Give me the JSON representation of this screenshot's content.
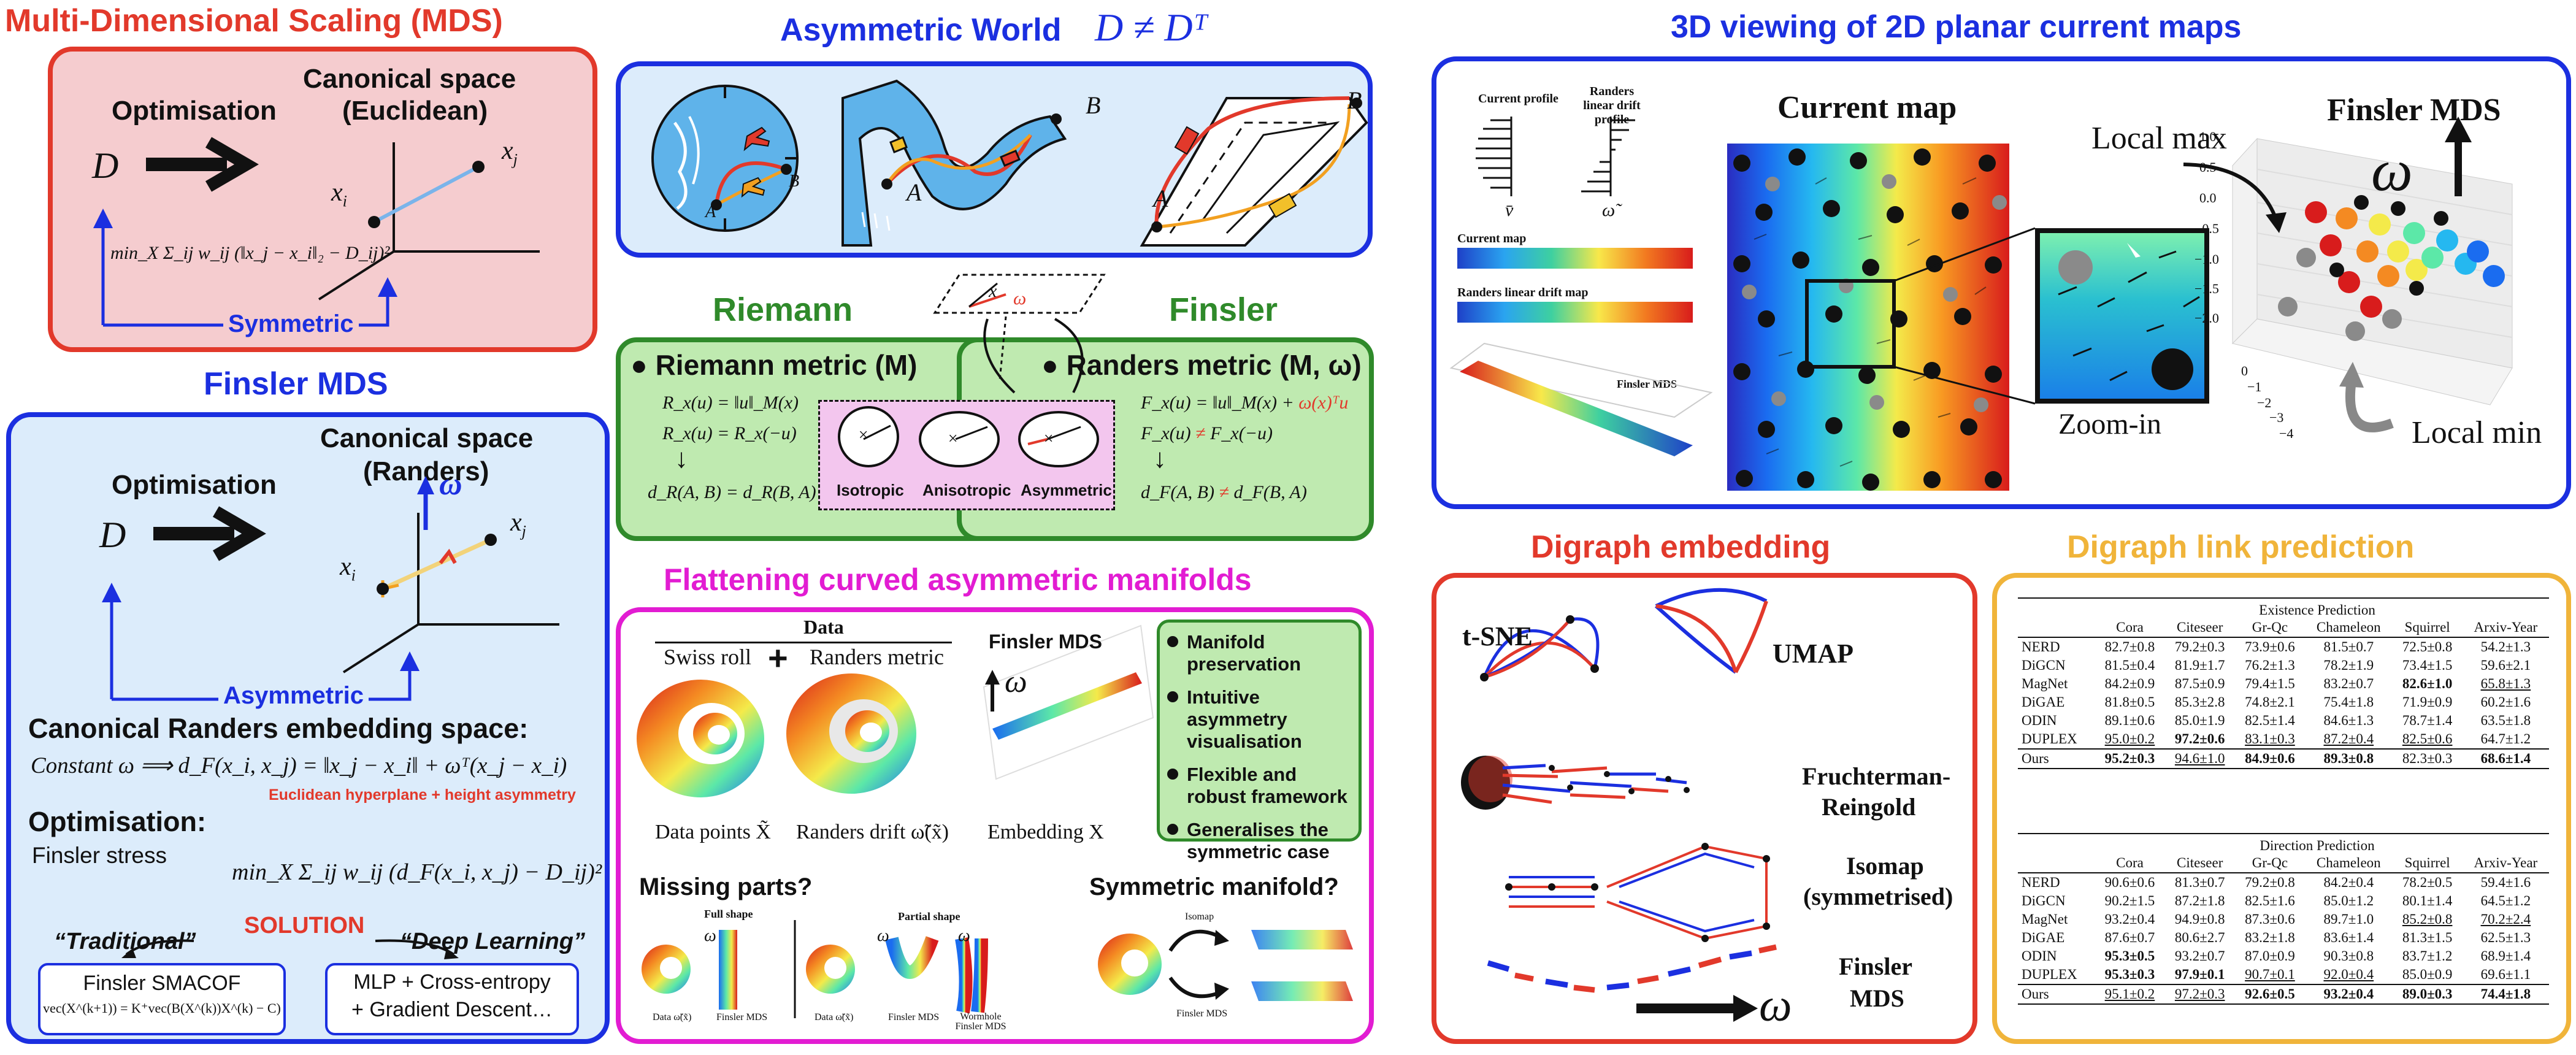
{
  "mds": {
    "title": "Multi-Dimensional Scaling (MDS)",
    "optimisation": "Optimisation",
    "canonical": "Canonical space",
    "canonical_sub": "(Euclidean)",
    "D": "D",
    "xi": "x",
    "xj": "x",
    "objective": "min_X Σ_ij w_ij (‖x_j − x_i‖₂ − D_ij)²",
    "symmetric": "Symmetric"
  },
  "fmds": {
    "title": "Finsler MDS",
    "optimisation": "Optimisation",
    "canonical": "Canonical space",
    "canonical_sub": "(Randers)",
    "D": "D",
    "omega": "ω",
    "asymmetric": "Asymmetric",
    "embed_title": "Canonical Randers embedding space:",
    "constant": "Constant ω ⟹ d_F(x_i, x_j) = ‖x_j − x_i‖ + ωᵀ(x_j − x_i)",
    "hyperplane": "Euclidean hyperplane + height asymmetry",
    "opt_title": "Optimisation:",
    "stress_label": "Finsler stress",
    "stress": "min_X Σ_ij w_ij (d_F(x_i, x_j) − D_ij)²",
    "solution": "SOLUTION",
    "traditional": "“Traditional”",
    "deep": "“Deep Learning”",
    "smacof": "Finsler SMACOF",
    "smacof_eq": "vec(X^(k+1)) = K⁺vec(B(X^(k))X^(k) − C)",
    "mlp1": "MLP + Cross-entropy",
    "mlp2": "+ Gradient Descent…"
  },
  "asym": {
    "title": "Asymmetric World",
    "formula": "D ≠ Dᵀ",
    "A": "A",
    "B": "B"
  },
  "rf": {
    "riemann": "Riemann",
    "finsler": "Finsler",
    "riemann_metric": "Riemann metric (M)",
    "randers_metric": "Randers metric (M, ω)",
    "r1": "R_x(u) = ‖u‖_M(x)",
    "r2": "R_x(u) = R_x(−u)",
    "r3": "d_R(A, B) = d_R(B, A)",
    "f1a": "F_x(u) = ‖u‖_M(x) + ",
    "f1b": "ω(x)ᵀu",
    "f2a": "F_x(u) ",
    "f2ne": "≠",
    "f2b": " F_x(−u)",
    "f3a": "d_F(A, B) ",
    "f3b": " d_F(B, A)",
    "isotropic": "Isotropic",
    "anisotropic": "Anisotropic",
    "asymmetric": "Asymmetric",
    "x": "x",
    "u": "u",
    "w": "ω"
  },
  "view3d": {
    "title": "3D viewing of 2D planar current maps",
    "current_profile": "Current profile",
    "randers_profile": "Randers linear drift profile",
    "v": "v̄",
    "w": "ω̃",
    "current_map_small": "Current map",
    "randers_map_small": "Randers linear drift map",
    "finsler_small": "Finsler MDS",
    "current_map": "Current map",
    "zoom": "Zoom-in",
    "local_max": "Local max",
    "local_min": "Local min",
    "finsler_mds": "Finsler MDS",
    "omega": "ω",
    "z_ticks": [
      "1.0",
      "0.5",
      "0.0",
      "−0.5",
      "−1.0",
      "−1.5",
      "−2.0"
    ],
    "x_ticks": [
      "−4",
      "−3",
      "−2",
      "−1",
      "0"
    ]
  },
  "flat": {
    "title": "Flattening curved asymmetric manifolds",
    "data": "Data",
    "swiss": "Swiss roll",
    "plus": "+",
    "randers": "Randers metric",
    "finsler": "Finsler MDS",
    "omega": "ω",
    "dp": "Data points X̃",
    "rd": "Randers drift ω̃(x̃)",
    "emb": "Embedding X",
    "bullets": [
      "Manifold preservation",
      "Intuitive asymmetry visualisation",
      "Flexible and robust framework",
      "Generalises the symmetric case"
    ],
    "missing": "Missing parts?",
    "symmetric_manifold": "Symmetric manifold?",
    "full_shape": "Full shape",
    "partial_shape": "Partial shape",
    "data_w": "Data ω̃(x̃)",
    "fmds": "Finsler MDS",
    "worm": "Wormhole Finsler MDS",
    "isomap": "Isomap",
    "finsler2": "Finsler MDS"
  },
  "digraph": {
    "title": "Digraph embedding",
    "tsne": "t-SNE",
    "umap": "UMAP",
    "fr1": "Fruchterman-",
    "fr2": "Reingold",
    "iso1": "Isomap",
    "iso2": "(symmetrised)",
    "fin1": "Finsler",
    "fin2": "MDS",
    "omega": "ω"
  },
  "link": {
    "title": "Digraph link prediction",
    "cols": [
      "Cora",
      "Citeseer",
      "Gr-Qc",
      "Chameleon",
      "Squirrel",
      "Arxiv-Year"
    ],
    "existence_title": "Existence Prediction",
    "existence": [
      [
        "NERD",
        "82.7±0.8",
        "79.2±0.3",
        "73.9±0.6",
        "81.5±0.7",
        "72.5±0.8",
        "54.2±1.3"
      ],
      [
        "DiGCN",
        "81.5±0.4",
        "81.9±1.7",
        "76.2±1.3",
        "78.2±1.9",
        "73.4±1.5",
        "59.6±2.1"
      ],
      [
        "MagNet",
        "84.2±0.9",
        "87.5±0.9",
        "79.4±1.5",
        "83.2±0.7",
        "82.6±1.0",
        "65.8±1.3"
      ],
      [
        "DiGAE",
        "81.8±0.5",
        "85.3±2.8",
        "74.8±2.1",
        "75.4±1.8",
        "71.9±0.9",
        "60.2±1.6"
      ],
      [
        "ODIN",
        "89.1±0.6",
        "85.0±1.9",
        "82.5±1.4",
        "84.6±1.3",
        "78.7±1.4",
        "63.5±1.8"
      ],
      [
        "DUPLEX",
        "95.0±0.2",
        "97.2±0.6",
        "83.1±0.3",
        "87.2±0.4",
        "82.5±0.6",
        "64.7±1.2"
      ],
      [
        "Ours",
        "95.2±0.3",
        "94.6±1.0",
        "84.9±0.6",
        "89.3±0.8",
        "82.3±0.3",
        "68.6±1.4"
      ]
    ],
    "direction_title": "Direction Prediction",
    "direction": [
      [
        "NERD",
        "90.6±0.6",
        "81.3±0.7",
        "79.2±0.8",
        "84.2±0.4",
        "78.2±0.5",
        "59.4±1.6"
      ],
      [
        "DiGCN",
        "90.2±1.5",
        "87.2±1.8",
        "82.5±1.6",
        "85.0±1.2",
        "80.1±1.4",
        "64.5±1.2"
      ],
      [
        "MagNet",
        "93.2±0.4",
        "94.9±0.8",
        "87.3±0.6",
        "89.7±1.0",
        "85.2±0.8",
        "70.2±2.4"
      ],
      [
        "DiGAE",
        "87.6±0.7",
        "80.6±2.7",
        "83.2±1.8",
        "83.6±1.4",
        "81.3±1.5",
        "62.5±1.3"
      ],
      [
        "ODIN",
        "95.3±0.5",
        "93.2±0.7",
        "87.0±0.9",
        "90.3±0.8",
        "83.7±1.2",
        "68.9±1.4"
      ],
      [
        "DUPLEX",
        "95.3±0.3",
        "97.9±0.1",
        "90.7±0.1",
        "92.0±0.4",
        "85.0±0.9",
        "69.6±1.1"
      ],
      [
        "Ours",
        "95.1±0.2",
        "97.2±0.3",
        "92.6±0.5",
        "93.2±0.4",
        "89.0±0.3",
        "74.4±1.8"
      ]
    ]
  },
  "colors": {
    "red": "#e2392b",
    "blue": "#1b2fe0",
    "green": "#2f8a2a",
    "magenta": "#e21cd2",
    "gold": "#f0b43a"
  }
}
